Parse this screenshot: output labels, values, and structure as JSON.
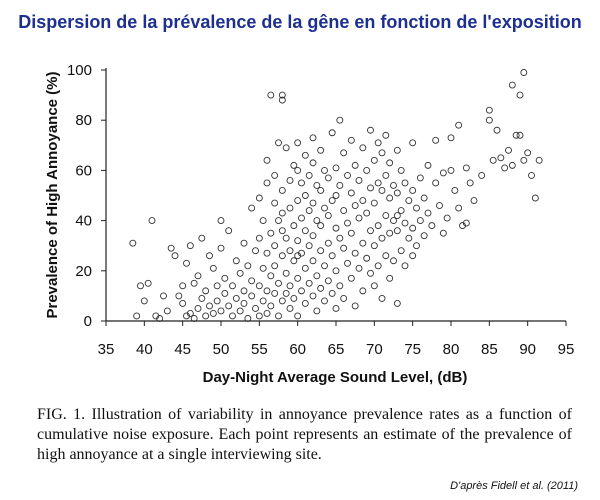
{
  "page": {
    "title": "Dispersion de la prévalence de la gêne en fonction de l'exposition",
    "caption": "FIG. 1. Illustration of variability in annoyance prevalence rates as a function of cumulative noise exposure. Each point represents an estimate of the prevalence of high annoyance at a single interviewing site.",
    "source": "D'après Fidell et al. (2011)"
  },
  "chart_data": {
    "type": "scatter",
    "xlabel": "Day-Night Average Sound Level, (dB)",
    "ylabel": "Prevalence of High Annoyance (%)",
    "xlim": [
      35,
      95
    ],
    "ylim": [
      0,
      100
    ],
    "xticks": [
      "35",
      "40",
      "45",
      "50",
      "55",
      "60",
      "65",
      "70",
      "75",
      "80",
      "85",
      "90",
      "95"
    ],
    "yticks": [
      "0",
      "20",
      "40",
      "60",
      "80",
      "100"
    ],
    "grid": false,
    "marker": "open-circle",
    "points": [
      [
        38.5,
        31
      ],
      [
        39,
        2
      ],
      [
        39.5,
        14
      ],
      [
        40,
        8
      ],
      [
        40.5,
        15
      ],
      [
        41,
        40
      ],
      [
        41.5,
        2
      ],
      [
        42,
        1
      ],
      [
        42.5,
        10
      ],
      [
        43,
        4
      ],
      [
        43.5,
        29
      ],
      [
        44,
        26
      ],
      [
        44.5,
        10
      ],
      [
        45,
        7
      ],
      [
        45,
        14
      ],
      [
        45.5,
        2
      ],
      [
        45.5,
        23
      ],
      [
        46,
        3
      ],
      [
        46,
        30
      ],
      [
        46.5,
        15
      ],
      [
        46.5,
        1
      ],
      [
        47,
        5
      ],
      [
        47,
        18
      ],
      [
        47.5,
        33
      ],
      [
        47.5,
        9
      ],
      [
        48,
        12
      ],
      [
        48,
        2
      ],
      [
        48.5,
        6
      ],
      [
        48.5,
        26
      ],
      [
        49,
        3
      ],
      [
        49,
        21
      ],
      [
        49.5,
        14
      ],
      [
        49.5,
        8
      ],
      [
        50,
        40
      ],
      [
        50,
        4
      ],
      [
        50,
        29
      ],
      [
        50.5,
        11
      ],
      [
        50.5,
        17
      ],
      [
        51,
        6
      ],
      [
        51,
        36
      ],
      [
        51.5,
        2
      ],
      [
        51.5,
        14
      ],
      [
        52,
        9
      ],
      [
        52,
        24
      ],
      [
        52.5,
        4
      ],
      [
        52.5,
        19
      ],
      [
        53,
        12
      ],
      [
        53,
        31
      ],
      [
        53,
        7
      ],
      [
        53.5,
        1
      ],
      [
        53.5,
        22
      ],
      [
        54,
        45
      ],
      [
        54,
        10
      ],
      [
        54,
        16
      ],
      [
        54.5,
        5
      ],
      [
        54.5,
        28
      ],
      [
        55,
        49
      ],
      [
        55,
        14
      ],
      [
        55,
        2
      ],
      [
        55,
        33
      ],
      [
        55.5,
        40
      ],
      [
        55.5,
        8
      ],
      [
        55.5,
        21
      ],
      [
        56,
        64
      ],
      [
        56,
        55
      ],
      [
        56,
        12
      ],
      [
        56,
        27
      ],
      [
        56,
        3
      ],
      [
        56.5,
        90
      ],
      [
        56.5,
        35
      ],
      [
        56.5,
        18
      ],
      [
        56.5,
        6
      ],
      [
        57,
        47
      ],
      [
        57,
        58
      ],
      [
        57,
        22
      ],
      [
        57,
        11
      ],
      [
        57,
        30
      ],
      [
        57.5,
        71
      ],
      [
        57.5,
        40
      ],
      [
        57.5,
        15
      ],
      [
        57.5,
        2
      ],
      [
        58,
        90
      ],
      [
        58,
        88
      ],
      [
        58,
        52
      ],
      [
        58,
        43
      ],
      [
        58,
        26
      ],
      [
        58,
        8
      ],
      [
        58,
        36
      ],
      [
        58.5,
        69
      ],
      [
        58.5,
        33
      ],
      [
        58.5,
        19
      ],
      [
        58.5,
        11
      ],
      [
        59,
        56
      ],
      [
        59,
        45
      ],
      [
        59,
        28
      ],
      [
        59,
        5
      ],
      [
        59,
        14
      ],
      [
        59.5,
        62
      ],
      [
        59.5,
        38
      ],
      [
        59.5,
        24
      ],
      [
        59.5,
        9
      ],
      [
        60,
        71
      ],
      [
        60,
        60
      ],
      [
        60,
        48
      ],
      [
        60,
        32
      ],
      [
        60,
        17
      ],
      [
        60,
        2
      ],
      [
        60.5,
        55
      ],
      [
        60.5,
        41
      ],
      [
        60.5,
        27
      ],
      [
        60.5,
        12
      ],
      [
        61,
        66
      ],
      [
        61,
        50
      ],
      [
        61,
        36
      ],
      [
        61,
        21
      ],
      [
        61,
        7
      ],
      [
        61.5,
        58
      ],
      [
        61.5,
        44
      ],
      [
        61.5,
        30
      ],
      [
        61.5,
        15
      ],
      [
        62,
        73
      ],
      [
        62,
        63
      ],
      [
        62,
        47
      ],
      [
        62,
        34
      ],
      [
        62,
        24
      ],
      [
        62,
        10
      ],
      [
        62.5,
        54
      ],
      [
        62.5,
        40
      ],
      [
        62.5,
        18
      ],
      [
        62.5,
        4
      ],
      [
        63,
        68
      ],
      [
        63,
        52
      ],
      [
        63,
        38
      ],
      [
        63,
        28
      ],
      [
        63,
        13
      ],
      [
        63.5,
        60
      ],
      [
        63.5,
        45
      ],
      [
        63.5,
        22
      ],
      [
        63.5,
        8
      ],
      [
        64,
        57
      ],
      [
        64,
        42
      ],
      [
        64,
        31
      ],
      [
        64,
        16
      ],
      [
        64.5,
        75
      ],
      [
        64.5,
        48
      ],
      [
        64.5,
        26
      ],
      [
        64.5,
        11
      ],
      [
        65,
        61
      ],
      [
        65,
        50
      ],
      [
        65,
        37
      ],
      [
        65,
        20
      ],
      [
        65,
        5
      ],
      [
        65.5,
        80
      ],
      [
        65.5,
        54
      ],
      [
        65.5,
        33
      ],
      [
        65.5,
        14
      ],
      [
        66,
        67
      ],
      [
        66,
        44
      ],
      [
        66,
        29
      ],
      [
        66,
        9
      ],
      [
        66.5,
        58
      ],
      [
        66.5,
        39
      ],
      [
        66.5,
        23
      ],
      [
        67,
        72
      ],
      [
        67,
        51
      ],
      [
        67,
        35
      ],
      [
        67,
        17
      ],
      [
        67.5,
        62
      ],
      [
        67.5,
        46
      ],
      [
        67.5,
        27
      ],
      [
        67.5,
        6
      ],
      [
        68,
        56
      ],
      [
        68,
        41
      ],
      [
        68,
        21
      ],
      [
        68.5,
        69
      ],
      [
        68.5,
        48
      ],
      [
        68.5,
        31
      ],
      [
        68.5,
        12
      ],
      [
        69,
        60
      ],
      [
        69,
        43
      ],
      [
        69,
        25
      ],
      [
        69.5,
        76
      ],
      [
        69.5,
        53
      ],
      [
        69.5,
        36
      ],
      [
        69.5,
        19
      ],
      [
        70,
        64
      ],
      [
        70,
        47
      ],
      [
        70,
        30
      ],
      [
        70,
        14
      ],
      [
        70.5,
        71
      ],
      [
        70.5,
        55
      ],
      [
        70.5,
        38
      ],
      [
        70.5,
        22
      ],
      [
        71,
        67
      ],
      [
        71,
        52
      ],
      [
        71,
        33
      ],
      [
        71,
        9
      ],
      [
        71.5,
        74
      ],
      [
        71.5,
        58
      ],
      [
        71.5,
        42
      ],
      [
        71.5,
        26
      ],
      [
        72,
        63
      ],
      [
        72,
        49
      ],
      [
        72,
        35
      ],
      [
        72,
        17
      ],
      [
        72.5,
        54
      ],
      [
        72.5,
        40
      ],
      [
        72.5,
        24
      ],
      [
        73,
        68
      ],
      [
        73,
        51
      ],
      [
        73,
        36
      ],
      [
        73,
        7
      ],
      [
        73.5,
        60
      ],
      [
        73.5,
        44
      ],
      [
        73.5,
        28
      ],
      [
        74,
        55
      ],
      [
        74,
        39
      ],
      [
        74,
        22
      ],
      [
        74.5,
        48
      ],
      [
        74.5,
        33
      ],
      [
        75,
        71
      ],
      [
        75,
        52
      ],
      [
        75,
        37
      ],
      [
        75,
        26
      ],
      [
        75.5,
        45
      ],
      [
        75.5,
        30
      ],
      [
        76,
        57
      ],
      [
        76,
        40
      ],
      [
        76.5,
        49
      ],
      [
        76.5,
        34
      ],
      [
        77,
        62
      ],
      [
        77,
        43
      ],
      [
        77.5,
        38
      ],
      [
        78,
        55
      ],
      [
        78,
        72
      ],
      [
        78.5,
        46
      ],
      [
        79,
        59
      ],
      [
        79,
        35
      ],
      [
        79.5,
        41
      ],
      [
        80,
        73
      ],
      [
        80,
        60
      ],
      [
        80.5,
        52
      ],
      [
        81,
        78
      ],
      [
        81,
        45
      ],
      [
        81.5,
        38
      ],
      [
        82,
        61
      ],
      [
        82,
        39
      ],
      [
        82.5,
        55
      ],
      [
        83,
        48
      ],
      [
        84,
        58
      ],
      [
        85,
        80
      ],
      [
        85.5,
        64
      ],
      [
        86,
        76
      ],
      [
        86.5,
        65
      ],
      [
        87,
        61
      ],
      [
        87.5,
        68
      ],
      [
        88,
        94
      ],
      [
        88,
        62
      ],
      [
        88.5,
        74
      ],
      [
        89,
        90
      ],
      [
        89,
        74
      ],
      [
        89.5,
        99
      ],
      [
        89.5,
        64
      ],
      [
        90,
        67
      ],
      [
        90.5,
        58
      ],
      [
        91,
        49
      ],
      [
        91.5,
        64
      ],
      [
        85,
        84
      ],
      [
        73,
        42
      ],
      [
        60,
        26
      ]
    ]
  }
}
